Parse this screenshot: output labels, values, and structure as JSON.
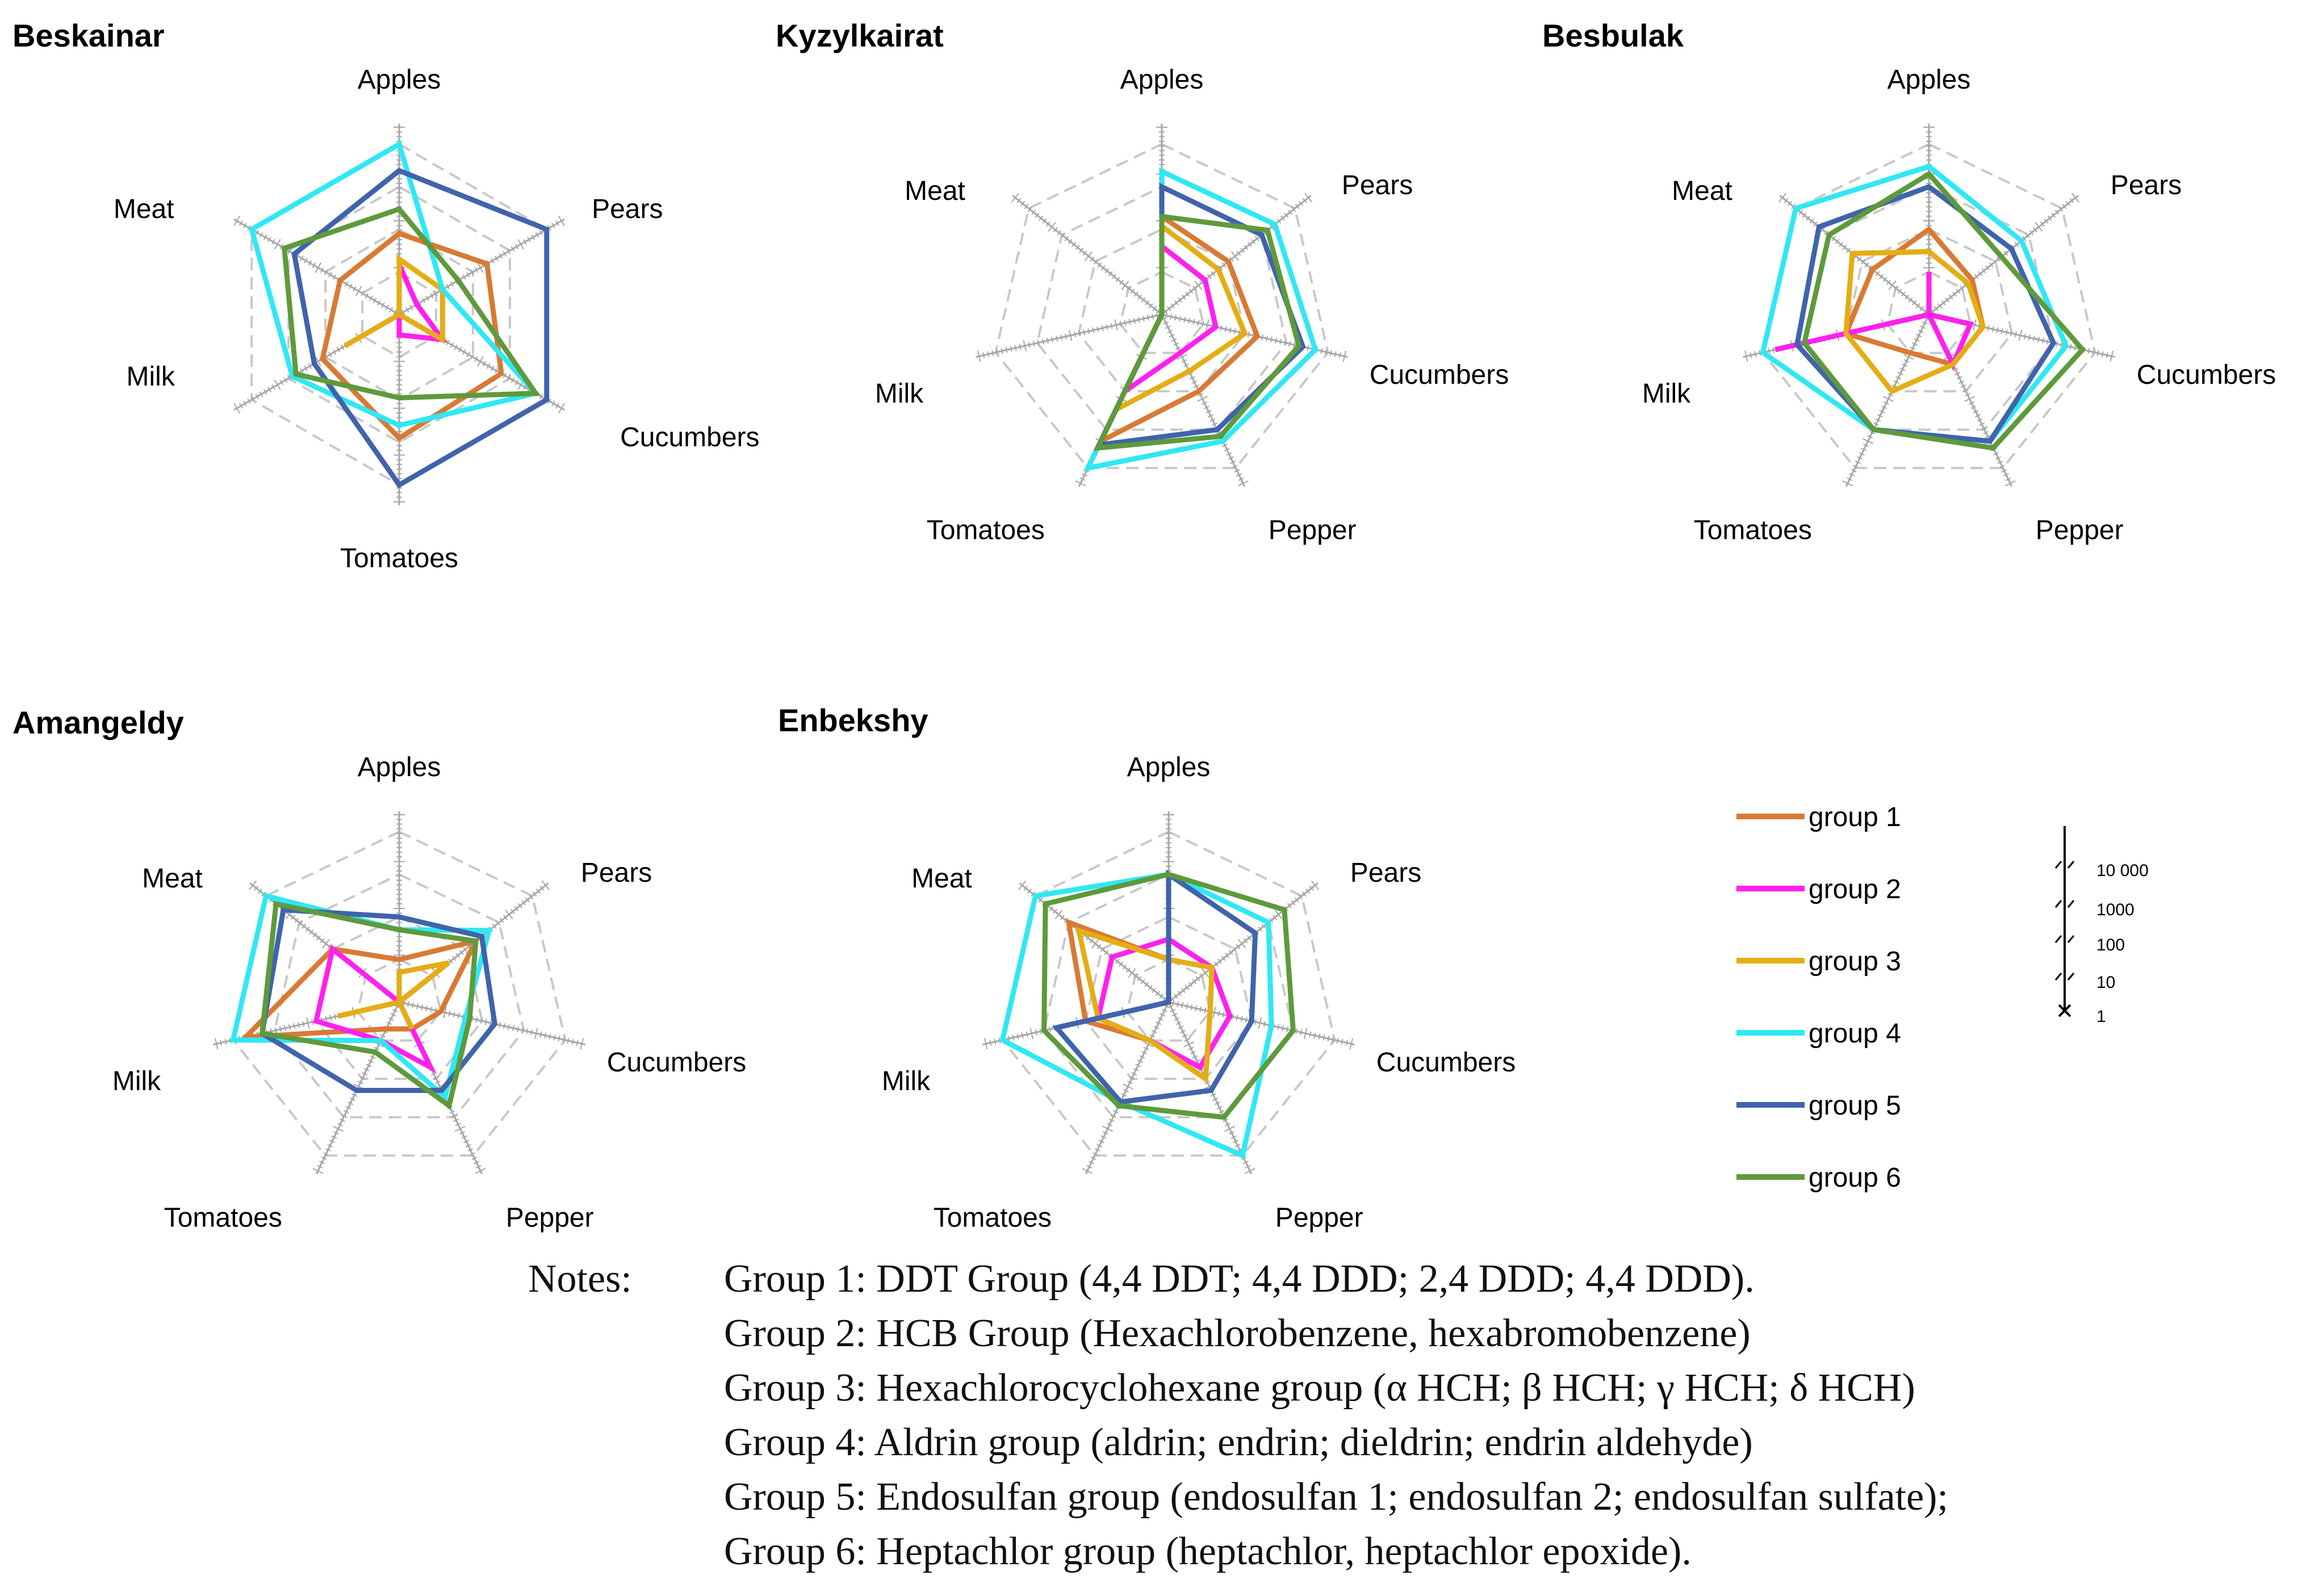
{
  "colors": {
    "group 1": "#d97a34",
    "group 2": "#ff20ee",
    "group 3": "#e4ad14",
    "group 4": "#2fe8f4",
    "group 5": "#3f64ac",
    "group 6": "#5e9a3c",
    "grid": "#c8c8c8",
    "axis": "#a6a6a6"
  },
  "chart_data": [
    {
      "type": "radar",
      "title": "Beskainar",
      "axes": [
        "Apples",
        "Pears",
        "Cucumbers",
        "Tomatoes",
        "Milk",
        "Meat"
      ],
      "scale": "log",
      "rings": [
        1,
        10,
        100,
        1000,
        10000
      ],
      "series": [
        {
          "name": "group 1",
          "values": [
            80,
            240,
            590,
            800,
            120,
            40
          ]
        },
        {
          "name": "group 2",
          "values": [
            15,
            3,
            15,
            3,
            1,
            1
          ]
        },
        {
          "name": "group 3",
          "values": [
            20,
            15,
            15,
            1,
            30,
            1
          ]
        },
        {
          "name": "group 4",
          "values": [
            10000,
            15,
            5000,
            400,
            790,
            10000
          ]
        },
        {
          "name": "group 5",
          "values": [
            2400,
            10000,
            10000,
            10000,
            200,
            700
          ]
        },
        {
          "name": "group 6",
          "values": [
            300,
            40,
            5000,
            90,
            630,
            1300
          ]
        }
      ]
    },
    {
      "type": "radar",
      "title": "Kyzylkairat",
      "axes": [
        "Apples",
        "Pears",
        "Cucumbers",
        "Pepper",
        "Tomatoes",
        "Milk",
        "Meat"
      ],
      "scale": "log",
      "rings": [
        1,
        10,
        100,
        1000,
        10000
      ],
      "series": [
        {
          "name": "group 1",
          "values": [
            200,
            100,
            200,
            100,
            2000,
            1,
            1
          ]
        },
        {
          "name": "group 2",
          "values": [
            40,
            20,
            20,
            10,
            100,
            1,
            1
          ]
        },
        {
          "name": "group 3",
          "values": [
            120,
            50,
            100,
            30,
            300,
            1,
            1
          ]
        },
        {
          "name": "group 4",
          "values": [
            2300,
            2500,
            5000,
            2000,
            10000,
            1,
            1
          ]
        },
        {
          "name": "group 5",
          "values": [
            1000,
            1000,
            2500,
            1000,
            2500,
            1,
            1
          ]
        },
        {
          "name": "group 6",
          "values": [
            200,
            1500,
            2000,
            1500,
            3000,
            1,
            1
          ]
        }
      ]
    },
    {
      "type": "radar",
      "title": "Besbulak",
      "axes": [
        "Apples",
        "Pears",
        "Cucumbers",
        "Pepper",
        "Tomatoes",
        "Milk",
        "Meat"
      ],
      "scale": "log",
      "rings": [
        1,
        10,
        100,
        1000,
        10000
      ],
      "series": [
        {
          "name": "group 1",
          "values": [
            100,
            20,
            20,
            20,
            10,
            100,
            50
          ]
        },
        {
          "name": "group 2",
          "values": [
            10,
            1,
            10,
            20,
            1,
            5000,
            1
          ]
        },
        {
          "name": "group 3",
          "values": [
            30,
            15,
            20,
            20,
            100,
            100,
            200
          ]
        },
        {
          "name": "group 4",
          "values": [
            3000,
            600,
            2000,
            2000,
            1000,
            10000,
            10000
          ]
        },
        {
          "name": "group 5",
          "values": [
            1000,
            300,
            1000,
            2000,
            1000,
            1500,
            2000
          ]
        },
        {
          "name": "group 6",
          "values": [
            2000,
            150,
            5000,
            3000,
            1000,
            1000,
            1000
          ]
        }
      ]
    },
    {
      "type": "radar",
      "title": "Amangeldy",
      "axes": [
        "Apples",
        "Pears",
        "Cucumbers",
        "Pepper",
        "Tomatoes",
        "Milk",
        "Meat"
      ],
      "scale": "log",
      "rings": [
        1,
        10,
        100,
        1000,
        10000
      ],
      "series": [
        {
          "name": "group 1",
          "values": [
            10,
            200,
            10,
            5,
            5,
            5000,
            100
          ]
        },
        {
          "name": "group 2",
          "values": [
            1,
            30,
            1,
            50,
            10,
            100,
            100
          ]
        },
        {
          "name": "group 3",
          "values": [
            5,
            30,
            1,
            5,
            1,
            30,
            1
          ]
        },
        {
          "name": "group 4",
          "values": [
            50,
            500,
            40,
            300,
            10,
            10000,
            10000
          ]
        },
        {
          "name": "group 5",
          "values": [
            100,
            300,
            200,
            200,
            200,
            2000,
            3000
          ]
        },
        {
          "name": "group 6",
          "values": [
            50,
            200,
            50,
            500,
            20,
            2000,
            5000
          ]
        }
      ]
    },
    {
      "type": "radar",
      "title": "Enbekshy",
      "axes": [
        "Apples",
        "Pears",
        "Cucumbers",
        "Pepper",
        "Tomatoes",
        "Milk",
        "Meat"
      ],
      "scale": "log",
      "rings": [
        1,
        10,
        100,
        1000,
        10000
      ],
      "series": [
        {
          "name": "group 1",
          "values": [
            10,
            20,
            10,
            100,
            10,
            100,
            1000
          ]
        },
        {
          "name": "group 2",
          "values": [
            30,
            20,
            30,
            50,
            10,
            50,
            50
          ]
        },
        {
          "name": "group 3",
          "values": [
            10,
            20,
            10,
            100,
            10,
            50,
            500
          ]
        },
        {
          "name": "group 4",
          "values": [
            1000,
            1000,
            300,
            10000,
            400,
            10000,
            10000
          ]
        },
        {
          "name": "group 5",
          "values": [
            1000,
            400,
            100,
            200,
            400,
            500,
            1
          ]
        },
        {
          "name": "group 6",
          "values": [
            1000,
            3000,
            1000,
            1000,
            500,
            1000,
            5000
          ]
        }
      ]
    }
  ],
  "legend": {
    "items": [
      "group 1",
      "group 2",
      "group 3",
      "group 4",
      "group 5",
      "group 6"
    ]
  },
  "scale_bar": {
    "labels": [
      "10 000",
      "1000",
      "100",
      "10",
      "1"
    ]
  },
  "notes": {
    "label": "Notes:",
    "lines": [
      "Group 1: DDT Group (4,4 DDT; 4,4 DDD; 2,4 DDD; 4,4 DDD).",
      "Group 2: HCB Group (Hexachlorobenzene, hexabromobenzene)",
      "Group 3: Hexachlorocyclohexane group (α HCH; β HCH; γ HCH; δ HCH)",
      "Group 4: Aldrin group (aldrin; endrin; dieldrin; endrin aldehyde)",
      "Group 5: Endosulfan group (endosulfan 1; endosulfan 2; endosulfan sulfate);",
      "Group 6: Heptachlor group (heptachlor, heptachlor epoxide)."
    ]
  }
}
